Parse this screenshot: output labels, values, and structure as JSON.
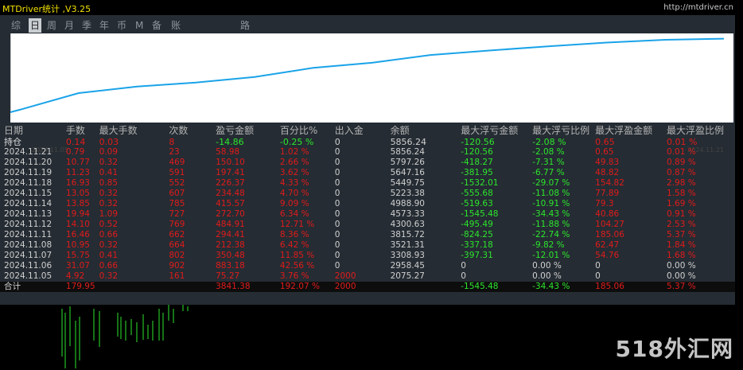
{
  "window": {
    "title": "MTDriver统计 ,V3.25",
    "url": "http://mtdriver.cn"
  },
  "tabs": [
    {
      "label": "综",
      "active": false
    },
    {
      "label": "日",
      "active": true
    },
    {
      "label": "周",
      "active": false
    },
    {
      "label": "月",
      "active": false
    },
    {
      "label": "季",
      "active": false
    },
    {
      "label": "年",
      "active": false
    },
    {
      "label": "币",
      "active": false
    },
    {
      "label": "M",
      "active": false
    },
    {
      "label": "备",
      "active": false
    },
    {
      "label": "账户",
      "active": false
    },
    {
      "label": "路径",
      "active": false
    }
  ],
  "chart": {
    "start_date": "2024.11.05",
    "end_date": "2024.11.21",
    "line_color": "#1aa3e8",
    "balance_series": [
      2075.27,
      2958.45,
      3308.93,
      3521.31,
      3815.72,
      4300.63,
      4573.33,
      4988.9,
      5223.38,
      5449.75,
      5647.16,
      5797.26,
      5856.24
    ]
  },
  "table": {
    "headers": [
      "日期",
      "手数",
      "最大手数",
      "次数",
      "盈亏金额",
      "百分比%",
      "出入金",
      "余额",
      "最大浮亏金额",
      "最大浮亏比例",
      "最大浮盈金额",
      "最大浮盈比例"
    ],
    "holding": [
      "持仓",
      "0.14",
      "0.03",
      "8",
      "-14.86",
      "-0.25 %",
      "0",
      "5856.24",
      "-120.56",
      "-2.08 %",
      "0.65",
      "0.01 %"
    ],
    "rows": [
      [
        "2024.11.21",
        "0.79",
        "0.09",
        "23",
        "58.98",
        "1.02 %",
        "0",
        "5856.24",
        "-120.56",
        "-2.08 %",
        "0.65",
        "0.01 %"
      ],
      [
        "2024.11.20",
        "10.77",
        "0.32",
        "469",
        "150.10",
        "2.66 %",
        "0",
        "5797.26",
        "-418.27",
        "-7.31 %",
        "49.83",
        "0.89 %"
      ],
      [
        "2024.11.19",
        "11.23",
        "0.41",
        "591",
        "197.41",
        "3.62 %",
        "0",
        "5647.16",
        "-381.95",
        "-6.77 %",
        "48.82",
        "0.87 %"
      ],
      [
        "2024.11.18",
        "16.93",
        "0.85",
        "552",
        "226.37",
        "4.33 %",
        "0",
        "5449.75",
        "-1532.01",
        "-29.07 %",
        "154.82",
        "2.98 %"
      ],
      [
        "2024.11.15",
        "13.05",
        "0.32",
        "607",
        "234.48",
        "4.70 %",
        "0",
        "5223.38",
        "-555.68",
        "-11.08 %",
        "77.89",
        "1.58 %"
      ],
      [
        "2024.11.14",
        "13.85",
        "0.32",
        "785",
        "415.57",
        "9.09 %",
        "0",
        "4988.90",
        "-519.63",
        "-10.91 %",
        "79.3",
        "1.69 %"
      ],
      [
        "2024.11.13",
        "19.94",
        "1.09",
        "727",
        "272.70",
        "6.34 %",
        "0",
        "4573.33",
        "-1545.48",
        "-34.43 %",
        "40.86",
        "0.91 %"
      ],
      [
        "2024.11.12",
        "14.10",
        "0.52",
        "769",
        "484.91",
        "12.71 %",
        "0",
        "4300.63",
        "-495.49",
        "-11.88 %",
        "104.27",
        "2.53 %"
      ],
      [
        "2024.11.11",
        "16.46",
        "0.66",
        "662",
        "294.41",
        "8.36 %",
        "0",
        "3815.72",
        "-824.25",
        "-22.74 %",
        "185.06",
        "5.37 %"
      ],
      [
        "2024.11.08",
        "10.95",
        "0.32",
        "664",
        "212.38",
        "6.42 %",
        "0",
        "3521.31",
        "-337.18",
        "-9.82 %",
        "62.47",
        "1.84 %"
      ],
      [
        "2024.11.07",
        "15.75",
        "0.41",
        "802",
        "350.48",
        "11.85 %",
        "0",
        "3308.93",
        "-397.31",
        "-12.01 %",
        "54.76",
        "1.68 %"
      ],
      [
        "2024.11.06",
        "31.07",
        "0.66",
        "902",
        "883.18",
        "42.56 %",
        "0",
        "2958.45",
        "0",
        "0.00 %",
        "0",
        "0.00 %"
      ],
      [
        "2024.11.05",
        "4.92",
        "0.32",
        "161",
        "75.27",
        "3.76 %",
        "2000",
        "2075.27",
        "0",
        "0.00 %",
        "0",
        "0.00 %"
      ]
    ],
    "total": [
      "合计",
      "179.95",
      "",
      "",
      "3841.38",
      "192.07 %",
      "2000",
      "",
      "-1545.48",
      "-34.43 %",
      "185.06",
      "5.37 %"
    ]
  },
  "watermark": "518外汇网"
}
